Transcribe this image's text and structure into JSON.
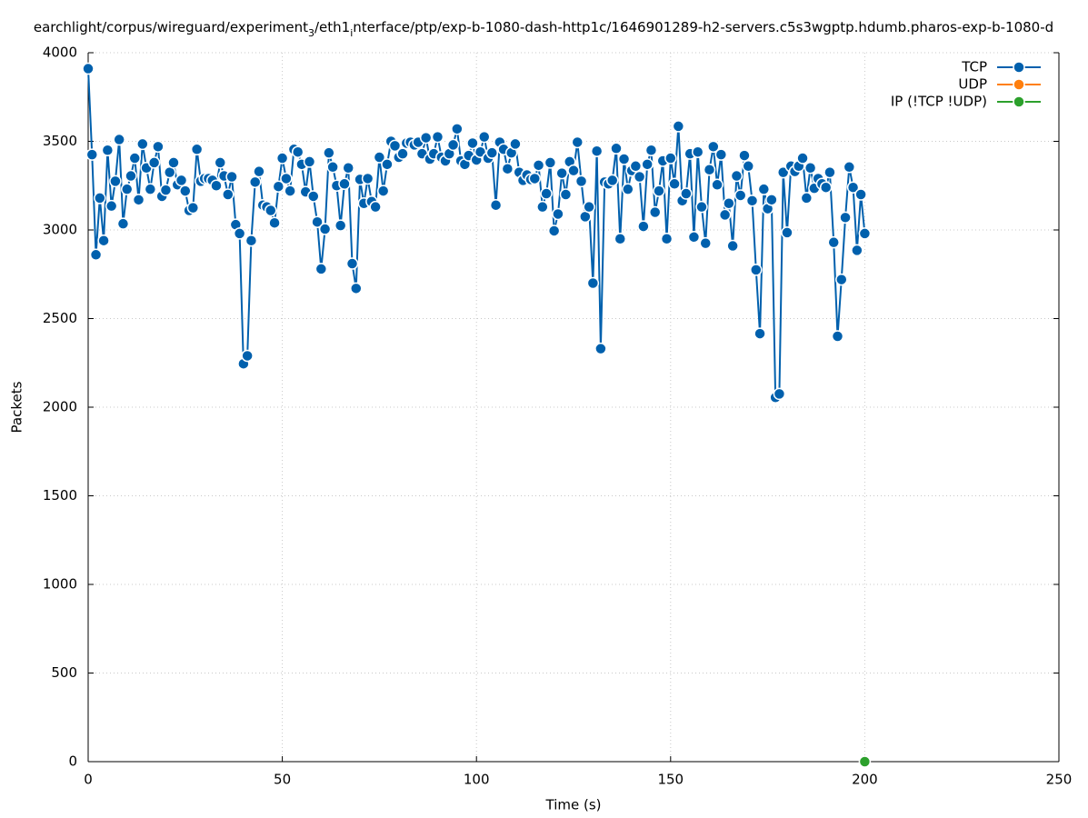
{
  "chart_data": {
    "type": "line",
    "title_parts": [
      "earchlight/corpus/wireguard/experiment",
      "3",
      "/eth1",
      "i",
      "nterface/ptp/exp-b-1080-dash-http1c/1646901289-h2-servers.c5s3wgptp.hdumb.pharos-exp-b-1080-d"
    ],
    "x_label": "Time (s)",
    "y_label": "Packets",
    "xlim": [
      0,
      250
    ],
    "ylim": [
      0,
      4000
    ],
    "xticks": [
      0,
      50,
      100,
      150,
      200,
      250
    ],
    "yticks": [
      0,
      500,
      1000,
      1500,
      2000,
      2500,
      3000,
      3500,
      4000
    ],
    "grid": true,
    "legend": "top-right",
    "series": [
      {
        "name": "TCP",
        "color": "#0060ad",
        "x": [
          0,
          1,
          2,
          3,
          4,
          5,
          6,
          7,
          8,
          9,
          10,
          11,
          12,
          13,
          14,
          15,
          16,
          17,
          18,
          19,
          20,
          21,
          22,
          23,
          24,
          25,
          26,
          27,
          28,
          29,
          30,
          31,
          32,
          33,
          34,
          35,
          36,
          37,
          38,
          39,
          40,
          41,
          42,
          43,
          44,
          45,
          46,
          47,
          48,
          49,
          50,
          51,
          52,
          53,
          54,
          55,
          56,
          57,
          58,
          59,
          60,
          61,
          62,
          63,
          64,
          65,
          66,
          67,
          68,
          69,
          70,
          71,
          72,
          73,
          74,
          75,
          76,
          77,
          78,
          79,
          80,
          81,
          82,
          83,
          84,
          85,
          86,
          87,
          88,
          89,
          90,
          91,
          92,
          93,
          94,
          95,
          96,
          97,
          98,
          99,
          100,
          101,
          102,
          103,
          104,
          105,
          106,
          107,
          108,
          109,
          110,
          111,
          112,
          113,
          114,
          115,
          116,
          117,
          118,
          119,
          120,
          121,
          122,
          123,
          124,
          125,
          126,
          127,
          128,
          129,
          130,
          131,
          132,
          133,
          134,
          135,
          136,
          137,
          138,
          139,
          140,
          141,
          142,
          143,
          144,
          145,
          146,
          147,
          148,
          149,
          150,
          151,
          152,
          153,
          154,
          155,
          156,
          157,
          158,
          159,
          160,
          161,
          162,
          163,
          164,
          165,
          166,
          167,
          168,
          169,
          170,
          171,
          172,
          173,
          174,
          175,
          176,
          177,
          178,
          179,
          180,
          181,
          182,
          183,
          184,
          185,
          186,
          187,
          188,
          189,
          190,
          191,
          192,
          193,
          194,
          195,
          196,
          197,
          198,
          199,
          200
        ],
        "values": [
          3910,
          3425,
          2860,
          3180,
          2940,
          3450,
          3135,
          3275,
          3510,
          3035,
          3230,
          3305,
          3405,
          3170,
          3485,
          3350,
          3230,
          3380,
          3470,
          3190,
          3225,
          3325,
          3380,
          3255,
          3280,
          3220,
          3110,
          3125,
          3455,
          3275,
          3290,
          3290,
          3280,
          3250,
          3380,
          3305,
          3200,
          3300,
          3030,
          2980,
          2245,
          2290,
          2940,
          3270,
          3330,
          3140,
          3130,
          3110,
          3040,
          3245,
          3405,
          3290,
          3220,
          3455,
          3440,
          3370,
          3215,
          3385,
          3190,
          3045,
          2780,
          3005,
          3435,
          3355,
          3250,
          3025,
          3260,
          3350,
          2810,
          2670,
          3285,
          3150,
          3290,
          3160,
          3130,
          3410,
          3220,
          3370,
          3500,
          3475,
          3410,
          3430,
          3490,
          3495,
          3480,
          3495,
          3430,
          3520,
          3400,
          3430,
          3525,
          3410,
          3390,
          3430,
          3480,
          3570,
          3390,
          3370,
          3420,
          3490,
          3395,
          3440,
          3525,
          3405,
          3435,
          3140,
          3495,
          3455,
          3345,
          3435,
          3485,
          3325,
          3280,
          3310,
          3285,
          3290,
          3365,
          3130,
          3205,
          3380,
          2995,
          3090,
          3320,
          3200,
          3385,
          3335,
          3495,
          3275,
          3075,
          3130,
          2700,
          3445,
          2330,
          3270,
          3260,
          3280,
          3460,
          2950,
          3400,
          3230,
          3335,
          3360,
          3300,
          3020,
          3370,
          3450,
          3100,
          3220,
          3390,
          2950,
          3405,
          3260,
          3585,
          3165,
          3205,
          3430,
          2960,
          3440,
          3130,
          2925,
          3340,
          3470,
          3255,
          3425,
          3085,
          3150,
          2910,
          3305,
          3195,
          3420,
          3360,
          3165,
          2775,
          2415,
          3230,
          3120,
          3170,
          2055,
          2075,
          3325,
          2985,
          3360,
          3330,
          3360,
          3405,
          3180,
          3350,
          3235,
          3290,
          3260,
          3240,
          3325,
          2930,
          2400,
          2720,
          3070,
          3355,
          3240,
          2885,
          3200,
          2980
        ]
      },
      {
        "name": "UDP",
        "color": "#ff7f0e",
        "x": [],
        "values": []
      },
      {
        "name": "IP (!TCP  !UDP)",
        "color": "#2ca02c",
        "x": [
          200
        ],
        "values": [
          0
        ]
      }
    ]
  }
}
